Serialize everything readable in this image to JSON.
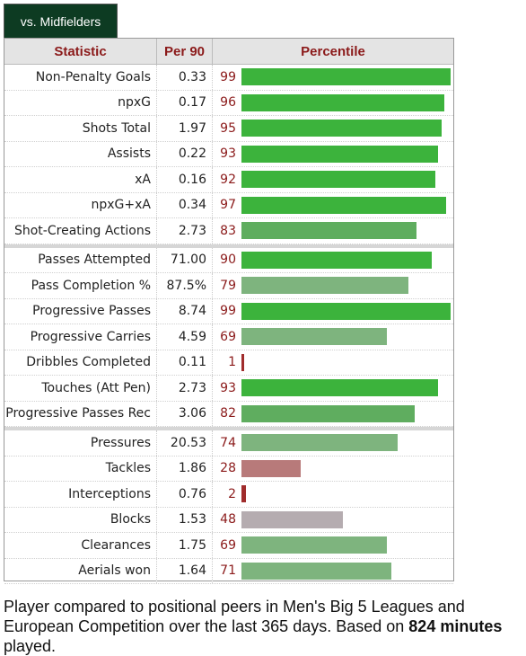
{
  "tab": {
    "label": "vs. Midfielders"
  },
  "table": {
    "headers": {
      "stat": "Statistic",
      "per90": "Per 90",
      "percentile": "Percentile"
    },
    "groups": [
      [
        {
          "stat": "Non-Penalty Goals",
          "per90": "0.33",
          "pct": 99
        },
        {
          "stat": "npxG",
          "per90": "0.17",
          "pct": 96
        },
        {
          "stat": "Shots Total",
          "per90": "1.97",
          "pct": 95
        },
        {
          "stat": "Assists",
          "per90": "0.22",
          "pct": 93
        },
        {
          "stat": "xA",
          "per90": "0.16",
          "pct": 92
        },
        {
          "stat": "npxG+xA",
          "per90": "0.34",
          "pct": 97
        },
        {
          "stat": "Shot-Creating Actions",
          "per90": "2.73",
          "pct": 83
        }
      ],
      [
        {
          "stat": "Passes Attempted",
          "per90": "71.00",
          "pct": 90
        },
        {
          "stat": "Pass Completion %",
          "per90": "87.5%",
          "pct": 79
        },
        {
          "stat": "Progressive Passes",
          "per90": "8.74",
          "pct": 99
        },
        {
          "stat": "Progressive Carries",
          "per90": "4.59",
          "pct": 69
        },
        {
          "stat": "Dribbles Completed",
          "per90": "0.11",
          "pct": 1
        },
        {
          "stat": "Touches (Att Pen)",
          "per90": "2.73",
          "pct": 93
        },
        {
          "stat": "Progressive Passes Rec",
          "per90": "3.06",
          "pct": 82
        }
      ],
      [
        {
          "stat": "Pressures",
          "per90": "20.53",
          "pct": 74
        },
        {
          "stat": "Tackles",
          "per90": "1.86",
          "pct": 28
        },
        {
          "stat": "Interceptions",
          "per90": "0.76",
          "pct": 2
        },
        {
          "stat": "Blocks",
          "per90": "1.53",
          "pct": 48
        },
        {
          "stat": "Clearances",
          "per90": "1.75",
          "pct": 69
        },
        {
          "stat": "Aerials won",
          "per90": "1.64",
          "pct": 71
        }
      ]
    ]
  },
  "colors": {
    "tier_90_plus": "#3cb33c",
    "tier_80_89": "#5fad5f",
    "tier_60_79": "#7eb47e",
    "tier_40_59": "#b5acb0",
    "tier_20_39": "#b87a7a",
    "tier_0_19": "#a02c2c"
  },
  "footer": {
    "text_before": "Player compared to positional peers in Men's Big 5 Leagues and European Competition over the last 365 days. Based on ",
    "minutes": "824 minutes",
    "text_after": " played."
  }
}
